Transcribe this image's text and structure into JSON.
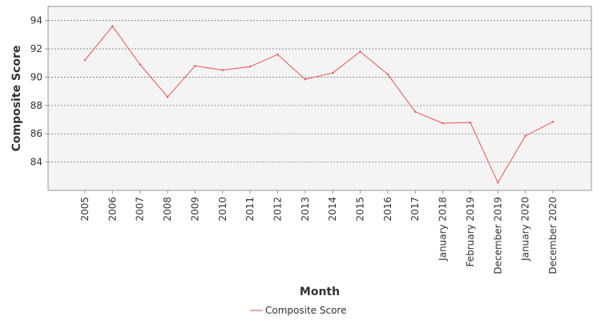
{
  "chart_data": {
    "type": "line",
    "categories": [
      "2005",
      "2006",
      "2007",
      "2008",
      "2009",
      "2010",
      "2011",
      "2012",
      "2013",
      "2014",
      "2015",
      "2016",
      "2017",
      "January 2018",
      "February 2019",
      "December 2019",
      "January 2020",
      "December 2020"
    ],
    "series": [
      {
        "name": "Composite Score",
        "color": "#ef5350",
        "values": [
          91.2,
          93.6,
          90.9,
          88.6,
          90.8,
          90.5,
          90.75,
          91.6,
          89.85,
          90.3,
          91.8,
          90.2,
          87.55,
          86.75,
          86.8,
          82.55,
          85.85,
          86.85
        ]
      }
    ],
    "xlabel": "Month",
    "ylabel": "Composite Score",
    "yticks": [
      84,
      86,
      88,
      90,
      92,
      94
    ],
    "ylim": [
      82.0,
      95.0
    ],
    "grid": true,
    "legend_position": "bottom"
  }
}
